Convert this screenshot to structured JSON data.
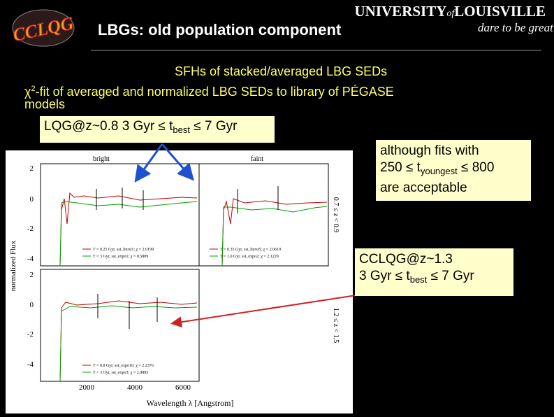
{
  "header": {
    "title": "LBGs:  old population component",
    "logo": "CCLQG",
    "university": "UNIVERSITY",
    "of": "of",
    "city": "LOUISVILLE",
    "tagline": "dare to be great"
  },
  "heading": "SFHs of stacked/averaged LBG SEDs",
  "intro": {
    "symbol": "χ",
    "sup": "2",
    "text": "-fit of averaged and normalized LBG SEDs to library of PÉGASE",
    "wrap": "models"
  },
  "callouts": [
    {
      "lines": [
        {
          "text": "LQG@z~0.8  3 Gyr ≤ t",
          "sub": "best",
          "tail": " ≤ 7 Gyr"
        }
      ]
    },
    {
      "lines": [
        {
          "text": "although fits with"
        },
        {
          "text": "250 ≤ t",
          "sub": "youngest",
          "tail": " ≤ 800"
        },
        {
          "text": "are acceptable"
        }
      ]
    },
    {
      "lines": [
        {
          "text": "CCLQG@z~1.3"
        },
        {
          "text": "3 Gyr ≤ t",
          "sub": "best",
          "tail": " ≤ 7 Gyr"
        }
      ]
    }
  ],
  "figure": {
    "y_label": "normalized Flux",
    "x_label": "Wavelength λ [Angstrom]",
    "y_ticks_top": [
      "2",
      "0",
      "-2",
      "-4"
    ],
    "y_ticks_bottom": [
      "2",
      "0",
      "-2",
      "-4"
    ],
    "x_ticks": [
      "2000",
      "4000",
      "6000"
    ],
    "panels": [
      {
        "title": "bright",
        "side": "0.7 ≤ z < 0.9",
        "legend": [
          "T = 0.25 Gyr, sst_burst1; χ = 2.0199",
          "T = 3 Gyr, sst_expo1; χ = 0.5809"
        ]
      },
      {
        "title": "faint",
        "legend": [
          "T = 0.35 Gyr, sst_burst5; χ = 2.0619",
          "T = 1.0 Gyr, sst_expo2; χ = 2.1229"
        ]
      },
      {
        "side": "1.2 ≤ z < 1.5",
        "legend": [
          "T = 0.8 Gyr, sst_expo10; χ = 2.2376",
          "T = 3 Gyr, sst_expo3; χ = 2.0895"
        ]
      }
    ]
  }
}
